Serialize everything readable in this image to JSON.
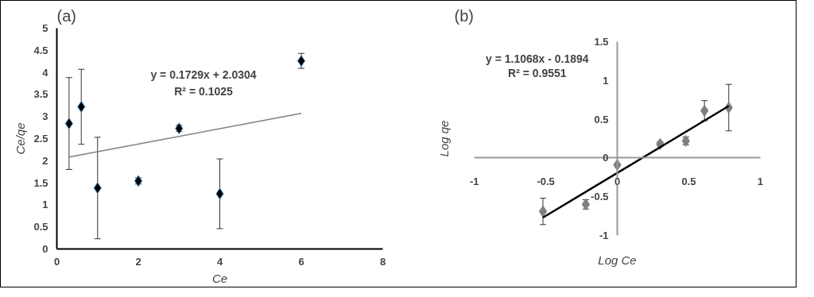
{
  "chart_data": [
    {
      "type": "scatter",
      "title": "(a)",
      "xlabel": "Ce",
      "ylabel": "Ce/qe",
      "xlim": [
        0,
        8
      ],
      "ylim": [
        0,
        5
      ],
      "xticks": [
        0,
        2,
        4,
        6,
        8
      ],
      "yticks": [
        0,
        0.5,
        1,
        1.5,
        2,
        2.5,
        3,
        3.5,
        4,
        4.5,
        5
      ],
      "grid": false,
      "annotations": [
        "y = 0.1729x + 2.0304",
        "R² = 0.1025"
      ],
      "series": [
        {
          "marker": "diamond",
          "color": "#000000",
          "x": [
            0.3,
            0.6,
            1,
            2,
            3,
            4,
            6
          ],
          "values": [
            2.84,
            3.22,
            1.38,
            1.54,
            2.73,
            1.25,
            4.26
          ],
          "errors": [
            1.04,
            0.85,
            1.15,
            0.07,
            0.07,
            0.79,
            0.17
          ]
        },
        {
          "type": "line",
          "color": "#808080",
          "x": [
            0.3,
            6
          ],
          "values": [
            2.08,
            3.07
          ]
        }
      ]
    },
    {
      "type": "scatter",
      "title": "(b)",
      "xlabel": "Log Ce",
      "ylabel": "Log qe",
      "xlim": [
        -1,
        1
      ],
      "ylim": [
        -1,
        1.5
      ],
      "xticks": [
        -1,
        -0.5,
        0,
        0.5,
        1
      ],
      "yticks": [
        -1,
        -0.5,
        0,
        0.5,
        1,
        1.5
      ],
      "grid": false,
      "annotations": [
        "y = 1.1068x - 0.1894",
        "R² = 0.9551"
      ],
      "series": [
        {
          "marker": "diamond",
          "color": "#7f7f7f",
          "x": [
            -0.52,
            -0.22,
            0,
            0.3,
            0.48,
            0.61,
            0.78
          ],
          "values": [
            -0.69,
            -0.6,
            -0.09,
            0.18,
            0.22,
            0.61,
            0.65
          ],
          "errors": [
            0.17,
            0.06,
            null,
            0.03,
            0.05,
            0.13,
            0.3
          ]
        },
        {
          "type": "line",
          "color": "#000000",
          "x": [
            -0.52,
            0.78
          ],
          "values": [
            -0.77,
            0.67
          ]
        }
      ]
    }
  ]
}
